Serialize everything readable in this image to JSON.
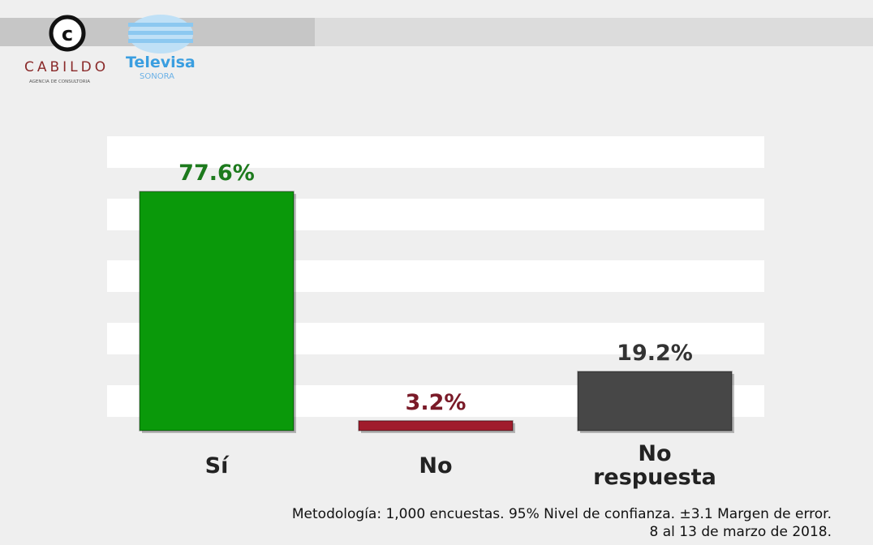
{
  "header": {
    "brand": "CABILDO",
    "brand_tagline": "AGENCIA DE CONSULTORIA",
    "partner": "Televisa",
    "partner_tagline": "SONORA"
  },
  "chart_data": {
    "type": "bar",
    "categories": [
      "Sí",
      "No",
      "No respuesta"
    ],
    "values": [
      77.6,
      3.2,
      19.2
    ],
    "value_labels": [
      "77.6%",
      "3.2%",
      "19.2%"
    ],
    "colors": [
      "#0a990a",
      "#a01c2c",
      "#474747"
    ],
    "label_colors": [
      "#1d7a1d",
      "#7a1a28",
      "#333333"
    ],
    "ylim": [
      0,
      100
    ]
  },
  "footnote": [
    "Metodología: 1,000 encuestas. 95% Nivel de confianza. ±3.1 Margen de error.",
    "8 al 13 de marzo de 2018."
  ]
}
